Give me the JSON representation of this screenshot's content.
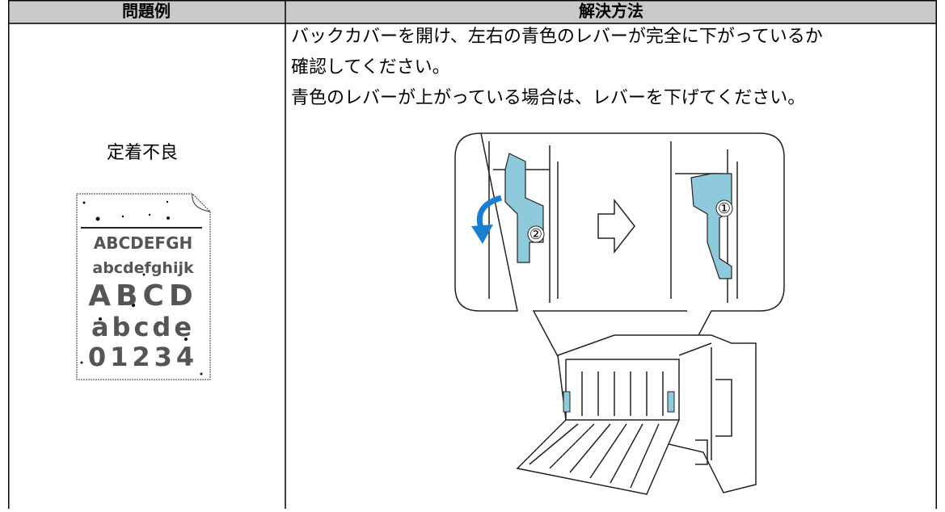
{
  "table": {
    "headers": [
      "問題例",
      "解決方法"
    ],
    "rows": [
      {
        "problem": "定着不良",
        "sample_lines": [
          "ABCDEFGH",
          "abcdefghijk",
          "ABCD",
          "abcde",
          "01234"
        ],
        "solution": [
          "バックカバーを開け、左右の青色のレバーが完全に下がっているか",
          "確認してください。",
          "青色のレバーが上がっている場合は、レバーを下げてください。"
        ],
        "figure_labels": [
          "②",
          "①"
        ]
      }
    ]
  }
}
